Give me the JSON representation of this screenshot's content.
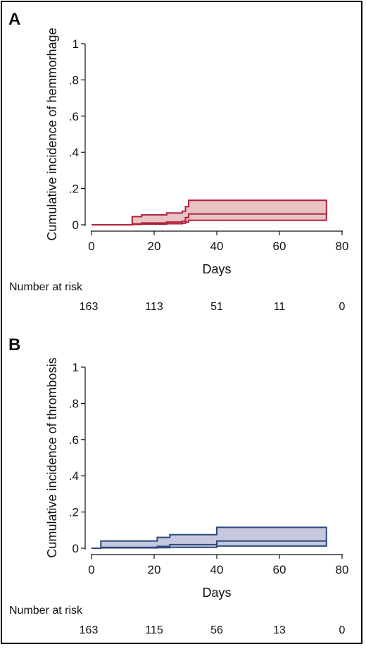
{
  "chart_data": [
    {
      "type": "area",
      "panel_label": "A",
      "xlabel": "Days",
      "ylabel": "Cumulative incidence of hemmorhage",
      "xlim": [
        0,
        80
      ],
      "ylim": [
        0,
        1
      ],
      "x_ticks": [
        "0",
        "20",
        "40",
        "60",
        "80"
      ],
      "y_ticks": [
        "0",
        ".2",
        ".4",
        ".6",
        ".8",
        "1"
      ],
      "grid": false,
      "colors": {
        "line": "#b0213a",
        "fill": "#e8c4c4"
      },
      "series": [
        {
          "name": "",
          "role": "estimate",
          "x": [
            0,
            13,
            16,
            24,
            29,
            30,
            31,
            75
          ],
          "y": [
            0,
            0.005,
            0.01,
            0.015,
            0.02,
            0.04,
            0.06,
            0.06
          ]
        },
        {
          "name": "",
          "role": "ci_lower",
          "x": [
            13,
            16,
            24,
            29,
            30,
            31,
            75
          ],
          "y": [
            0.002,
            0.004,
            0.006,
            0.008,
            0.015,
            0.025,
            0.025
          ]
        },
        {
          "name": "",
          "role": "ci_upper",
          "x": [
            13,
            16,
            24,
            29,
            30,
            31,
            75
          ],
          "y": [
            0.045,
            0.055,
            0.065,
            0.075,
            0.1,
            0.135,
            0.135
          ]
        }
      ],
      "risk_table": {
        "title": "Number at risk",
        "days": [
          0,
          20,
          40,
          60,
          80
        ],
        "counts": [
          "163",
          "113",
          "51",
          "11",
          "0"
        ]
      }
    },
    {
      "type": "area",
      "panel_label": "B",
      "xlabel": "Days",
      "ylabel": "Cumulative incidence of thrombosis",
      "xlim": [
        0,
        80
      ],
      "ylim": [
        0,
        1
      ],
      "x_ticks": [
        "0",
        "20",
        "40",
        "60",
        "80"
      ],
      "y_ticks": [
        "0",
        ".2",
        ".4",
        ".6",
        ".8",
        "1"
      ],
      "grid": false,
      "colors": {
        "line": "#2e4a7a",
        "fill": "#c5c8de"
      },
      "series": [
        {
          "name": "",
          "role": "estimate",
          "x": [
            0,
            3,
            21,
            25,
            40,
            75
          ],
          "y": [
            0,
            0.005,
            0.01,
            0.02,
            0.04,
            0.04
          ]
        },
        {
          "name": "",
          "role": "ci_lower",
          "x": [
            3,
            21,
            25,
            40,
            75
          ],
          "y": [
            0.002,
            0.003,
            0.005,
            0.012,
            0.012
          ]
        },
        {
          "name": "",
          "role": "ci_upper",
          "x": [
            3,
            21,
            25,
            40,
            75
          ],
          "y": [
            0.04,
            0.06,
            0.075,
            0.115,
            0.115
          ]
        }
      ],
      "risk_table": {
        "title": "Number at risk",
        "days": [
          0,
          20,
          40,
          60,
          80
        ],
        "counts": [
          "163",
          "115",
          "56",
          "13",
          "0"
        ]
      }
    }
  ]
}
